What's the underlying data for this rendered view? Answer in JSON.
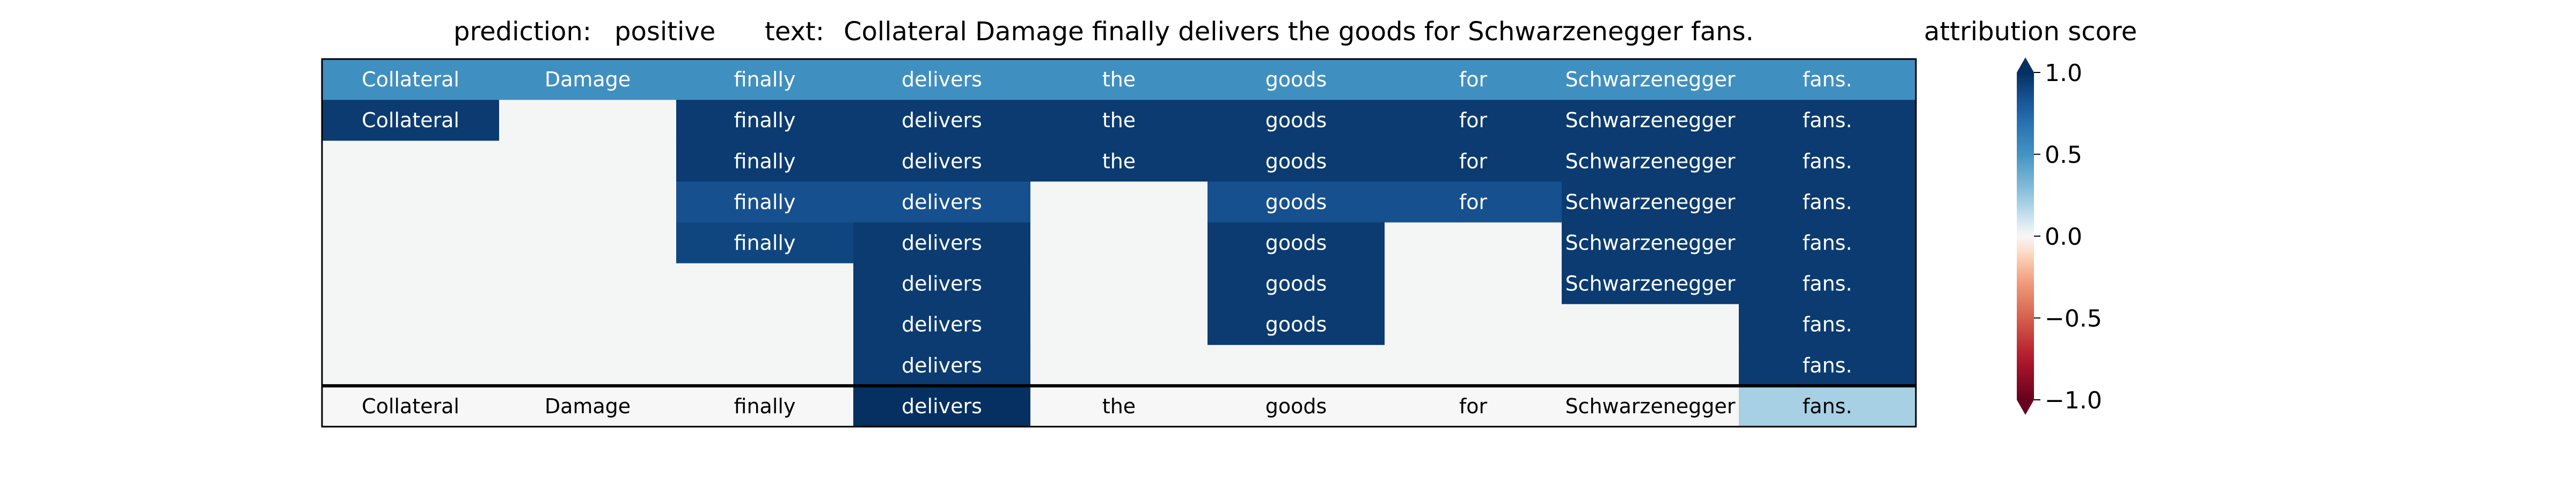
{
  "header": {
    "prediction_label": "prediction:",
    "prediction_value": "positive",
    "text_label": "text:",
    "text_value": "Collateral Damage finally delivers the goods for Schwarzenegger fans."
  },
  "colorbar": {
    "title": "attribution score",
    "ticks": [
      "1.0",
      "0.5",
      "0.0",
      "−0.5",
      "−1.0"
    ],
    "tick_values": [
      1.0,
      0.5,
      0.0,
      -0.5,
      -1.0
    ],
    "range": [
      -1.0,
      1.0
    ],
    "colormap": "RdBu",
    "extend": "both"
  },
  "chart_data": {
    "type": "heatmap",
    "title": "prediction:  positive     text:  Collateral Damage finally delivers the goods for Schwarzenegger fans.",
    "tokens": [
      "Collateral",
      "Damage",
      "finally",
      "delivers",
      "the",
      "goods",
      "for",
      "Schwarzenegger",
      "fans."
    ],
    "value_range": [
      -1.0,
      1.0
    ],
    "hierarchy_rows": [
      [
        0.52,
        0.52,
        0.52,
        0.52,
        0.52,
        0.52,
        0.52,
        0.52,
        0.52
      ],
      [
        0.95,
        null,
        0.95,
        0.95,
        0.95,
        0.95,
        0.95,
        0.95,
        0.95
      ],
      [
        null,
        null,
        0.95,
        0.95,
        0.95,
        0.95,
        0.95,
        0.95,
        0.95
      ],
      [
        null,
        null,
        0.85,
        0.85,
        null,
        0.85,
        0.85,
        0.95,
        0.95
      ],
      [
        null,
        null,
        0.9,
        0.95,
        null,
        0.95,
        null,
        0.95,
        0.95
      ],
      [
        null,
        null,
        null,
        0.95,
        null,
        0.95,
        null,
        0.95,
        0.95
      ],
      [
        null,
        null,
        null,
        0.95,
        null,
        0.95,
        null,
        null,
        0.95
      ],
      [
        null,
        null,
        null,
        0.95,
        null,
        null,
        null,
        null,
        0.95
      ]
    ],
    "token_attributions": [
      0.0,
      0.0,
      0.0,
      1.0,
      0.0,
      0.0,
      0.0,
      0.0,
      0.2
    ]
  }
}
